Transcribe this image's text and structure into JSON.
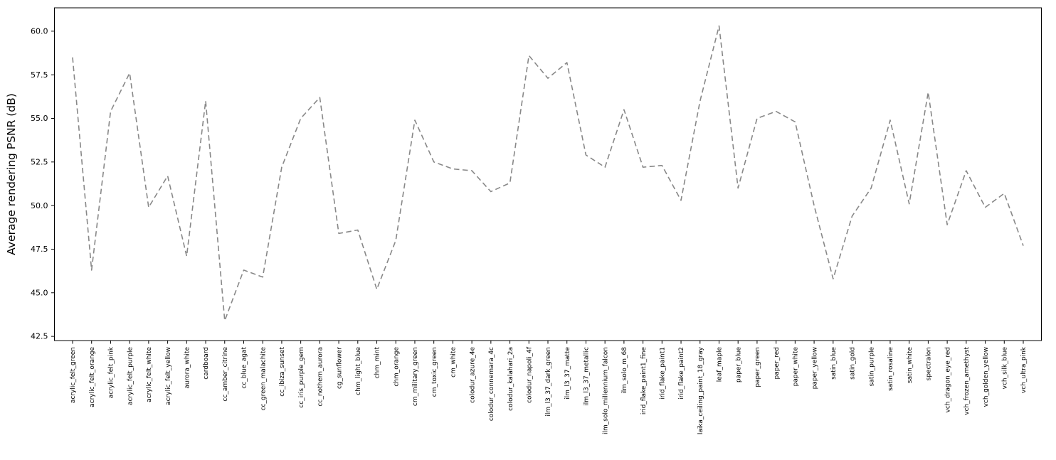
{
  "chart_data": {
    "type": "line",
    "title": "",
    "xlabel": "",
    "ylabel": "Average rendering PSNR (dB)",
    "categories": [
      "acrylic_felt_green",
      "acrylic_felt_orange",
      "acrylic_felt_pink",
      "acrylic_felt_purple",
      "acrylic_felt_white",
      "acrylic_felt_yellow",
      "aurora_white",
      "cardboard",
      "cc_amber_citrine",
      "cc_blue_agat",
      "cc_green_malachite",
      "cc_ibiza_sunset",
      "cc_iris_purple_gem",
      "cc_nothern_aurora",
      "cg_sunflower",
      "chm_light_blue",
      "chm_mint",
      "chm_orange",
      "cm_military_green",
      "cm_toxic_green",
      "cm_white",
      "colodur_azure_4e",
      "colodur_connemara_4c",
      "colodur_kalahari_2a",
      "colodur_napoli_4f",
      "ilm_l3_37_dark_green",
      "ilm_l3_37_matte",
      "ilm_l3_37_metallic",
      "ilm_solo_millennium_falcon",
      "ilm_solo_m_68",
      "irid_flake_paint1_fine",
      "irid_flake_paint1",
      "irid_flake_paint2",
      "laika_ceiling_paint_18_gray",
      "leaf_maple",
      "paper_blue",
      "paper_green",
      "paper_red",
      "paper_white",
      "paper_yellow",
      "satin_blue",
      "satin_gold",
      "satin_purple",
      "satin_rosaline",
      "satin_white",
      "spectralon",
      "vch_dragon_eye_red",
      "vch_frozen_amethyst",
      "vch_golden_yellow",
      "vch_silk_blue",
      "vch_ultra_pink"
    ],
    "values": [
      58.5,
      46.3,
      55.4,
      57.6,
      49.9,
      51.7,
      47.1,
      56.0,
      43.4,
      46.3,
      45.9,
      52.2,
      55.0,
      56.2,
      48.4,
      48.6,
      45.2,
      48.0,
      54.9,
      52.5,
      52.1,
      52.0,
      50.8,
      51.3,
      58.6,
      57.3,
      58.2,
      52.9,
      52.2,
      55.5,
      52.2,
      52.3,
      50.3,
      56.0,
      60.3,
      51.0,
      55.0,
      55.4,
      54.8,
      50.0,
      45.8,
      49.4,
      51.0,
      54.9,
      50.1,
      56.5,
      48.9,
      52.0,
      49.9,
      50.7,
      47.7
    ],
    "ytick_labels": [
      "42.5",
      "45.0",
      "47.5",
      "50.0",
      "52.5",
      "55.0",
      "57.5",
      "60.0"
    ],
    "ylim": [
      42.26,
      61.34
    ],
    "grid": false,
    "legend": null,
    "line_style": "dashed",
    "line_color": "#888888",
    "axis_color": "#000000",
    "background_color": "#ffffff"
  }
}
